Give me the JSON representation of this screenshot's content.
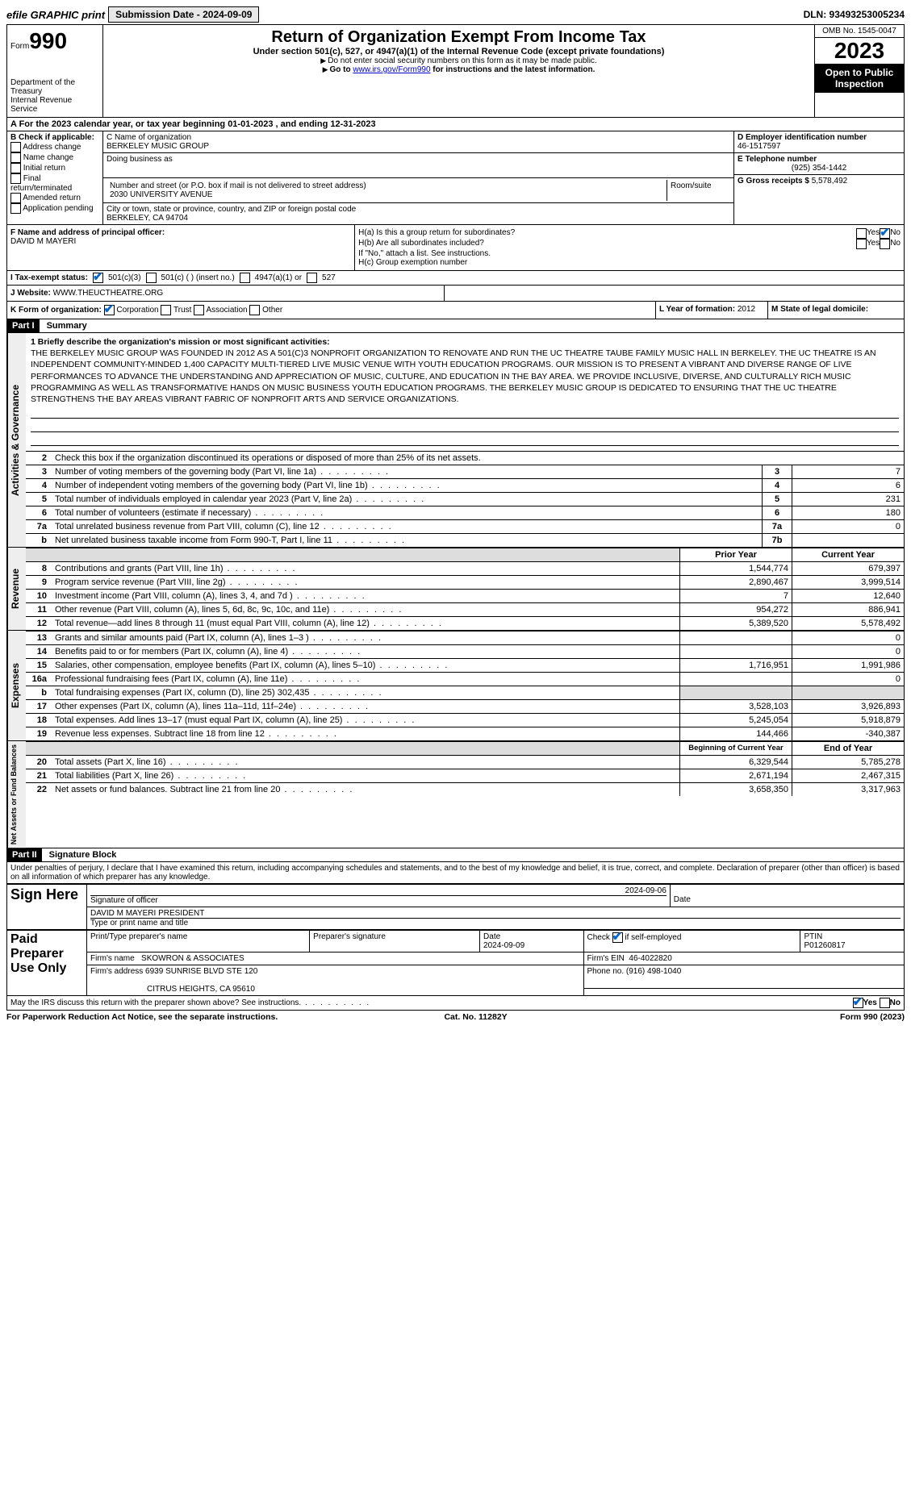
{
  "topbar": {
    "efile_label": "efile GRAPHIC print",
    "submission_label": "Submission Date - 2024-09-09",
    "dln_label": "DLN: 93493253005234"
  },
  "header": {
    "form_word": "Form",
    "form_num": "990",
    "dept": "Department of the Treasury",
    "irs": "Internal Revenue Service",
    "title": "Return of Organization Exempt From Income Tax",
    "subtitle": "Under section 501(c), 527, or 4947(a)(1) of the Internal Revenue Code (except private foundations)",
    "warn": "Do not enter social security numbers on this form as it may be made public.",
    "goto_pre": "Go to ",
    "goto_link": "www.irs.gov/Form990",
    "goto_post": " for instructions and the latest information.",
    "omb": "OMB No. 1545-0047",
    "year": "2023",
    "inspect": "Open to Public Inspection"
  },
  "lineA": "A For the 2023 calendar year, or tax year beginning 01-01-2023   , and ending 12-31-2023",
  "colB": {
    "header": "B Check if applicable:",
    "items": [
      "Address change",
      "Name change",
      "Initial return",
      "Final return/terminated",
      "Amended return",
      "Application pending"
    ]
  },
  "colC": {
    "name_label": "C Name of organization",
    "name": "BERKELEY MUSIC GROUP",
    "dba_label": "Doing business as",
    "addr_label": "Number and street (or P.O. box if mail is not delivered to street address)",
    "addr": "2030 UNIVERSITY AVENUE",
    "room_label": "Room/suite",
    "city_label": "City or town, state or province, country, and ZIP or foreign postal code",
    "city": "BERKELEY, CA  94704"
  },
  "colD": {
    "ein_label": "D Employer identification number",
    "ein": "46-1517597",
    "phone_label": "E Telephone number",
    "phone": "(925) 354-1442",
    "gross_label": "G Gross receipts $",
    "gross": "5,578,492"
  },
  "rowF": {
    "label": "F Name and address of principal officer:",
    "name": "DAVID M MAYERI"
  },
  "rowH": {
    "ha": "H(a)  Is this a group return for subordinates?",
    "hb": "H(b)  Are all subordinates included?",
    "hnote": "If \"No,\" attach a list. See instructions.",
    "hc": "H(c)  Group exemption number",
    "yes": "Yes",
    "no": "No"
  },
  "rowI": {
    "label": "I   Tax-exempt status:",
    "o1": "501(c)(3)",
    "o2": "501(c) (  ) (insert no.)",
    "o3": "4947(a)(1) or",
    "o4": "527"
  },
  "rowJ": {
    "label": "J   Website:",
    "val": "WWW.THEUCTHEATRE.ORG"
  },
  "rowK": {
    "label": "K Form of organization:",
    "o1": "Corporation",
    "o2": "Trust",
    "o3": "Association",
    "o4": "Other",
    "l_label": "L Year of formation:",
    "l_val": "2012",
    "m_label": "M State of legal domicile:"
  },
  "part1": {
    "hdr": "Part I",
    "title": "Summary",
    "q1_label": "1  Briefly describe the organization's mission or most significant activities:",
    "mission": "THE BERKELEY MUSIC GROUP WAS FOUNDED IN 2012 AS A 501(C)3 NONPROFIT ORGANIZATION TO RENOVATE AND RUN THE UC THEATRE TAUBE FAMILY MUSIC HALL IN BERKELEY. THE UC THEATRE IS AN INDEPENDENT COMMUNITY-MINDED 1,400 CAPACITY MULTI-TIERED LIVE MUSIC VENUE WITH YOUTH EDUCATION PROGRAMS. OUR MISSION IS TO PRESENT A VIBRANT AND DIVERSE RANGE OF LIVE PERFORMANCES TO ADVANCE THE UNDERSTANDING AND APPRECIATION OF MUSIC, CULTURE, AND EDUCATION IN THE BAY AREA. WE PROVIDE INCLUSIVE, DIVERSE, AND CULTURALLY RICH MUSIC PROGRAMMING AS WELL AS TRANSFORMATIVE HANDS ON MUSIC BUSINESS YOUTH EDUCATION PROGRAMS. THE BERKELEY MUSIC GROUP IS DEDICATED TO ENSURING THAT THE UC THEATRE STRENGTHENS THE BAY AREAS VIBRANT FABRIC OF NONPROFIT ARTS AND SERVICE ORGANIZATIONS.",
    "q2": "Check this box       if the organization discontinued its operations or disposed of more than 25% of its net assets.",
    "rows_single": [
      {
        "n": "3",
        "d": "Number of voting members of the governing body (Part VI, line 1a)",
        "box": "3",
        "v": "7"
      },
      {
        "n": "4",
        "d": "Number of independent voting members of the governing body (Part VI, line 1b)",
        "box": "4",
        "v": "6"
      },
      {
        "n": "5",
        "d": "Total number of individuals employed in calendar year 2023 (Part V, line 2a)",
        "box": "5",
        "v": "231"
      },
      {
        "n": "6",
        "d": "Total number of volunteers (estimate if necessary)",
        "box": "6",
        "v": "180"
      },
      {
        "n": "7a",
        "d": "Total unrelated business revenue from Part VIII, column (C), line 12",
        "box": "7a",
        "v": "0"
      },
      {
        "n": "b",
        "d": "Net unrelated business taxable income from Form 990-T, Part I, line 11",
        "box": "7b",
        "v": ""
      }
    ],
    "col_hdr_prior": "Prior Year",
    "col_hdr_curr": "Current Year",
    "revenue_label": "Revenue",
    "rows_rev": [
      {
        "n": "8",
        "d": "Contributions and grants (Part VIII, line 1h)",
        "p": "1,544,774",
        "c": "679,397"
      },
      {
        "n": "9",
        "d": "Program service revenue (Part VIII, line 2g)",
        "p": "2,890,467",
        "c": "3,999,514"
      },
      {
        "n": "10",
        "d": "Investment income (Part VIII, column (A), lines 3, 4, and 7d )",
        "p": "7",
        "c": "12,640"
      },
      {
        "n": "11",
        "d": "Other revenue (Part VIII, column (A), lines 5, 6d, 8c, 9c, 10c, and 11e)",
        "p": "954,272",
        "c": "886,941"
      },
      {
        "n": "12",
        "d": "Total revenue—add lines 8 through 11 (must equal Part VIII, column (A), line 12)",
        "p": "5,389,520",
        "c": "5,578,492"
      }
    ],
    "expenses_label": "Expenses",
    "rows_exp": [
      {
        "n": "13",
        "d": "Grants and similar amounts paid (Part IX, column (A), lines 1–3 )",
        "p": "",
        "c": "0"
      },
      {
        "n": "14",
        "d": "Benefits paid to or for members (Part IX, column (A), line 4)",
        "p": "",
        "c": "0"
      },
      {
        "n": "15",
        "d": "Salaries, other compensation, employee benefits (Part IX, column (A), lines 5–10)",
        "p": "1,716,951",
        "c": "1,991,986"
      },
      {
        "n": "16a",
        "d": "Professional fundraising fees (Part IX, column (A), line 11e)",
        "p": "",
        "c": "0"
      },
      {
        "n": "b",
        "d": "Total fundraising expenses (Part IX, column (D), line 25) 302,435",
        "p": "grey",
        "c": "grey"
      },
      {
        "n": "17",
        "d": "Other expenses (Part IX, column (A), lines 11a–11d, 11f–24e)",
        "p": "3,528,103",
        "c": "3,926,893"
      },
      {
        "n": "18",
        "d": "Total expenses. Add lines 13–17 (must equal Part IX, column (A), line 25)",
        "p": "5,245,054",
        "c": "5,918,879"
      },
      {
        "n": "19",
        "d": "Revenue less expenses. Subtract line 18 from line 12",
        "p": "144,466",
        "c": "-340,387"
      }
    ],
    "net_label": "Net Assets or Fund Balances",
    "col_hdr_beg": "Beginning of Current Year",
    "col_hdr_end": "End of Year",
    "rows_net": [
      {
        "n": "20",
        "d": "Total assets (Part X, line 16)",
        "p": "6,329,544",
        "c": "5,785,278"
      },
      {
        "n": "21",
        "d": "Total liabilities (Part X, line 26)",
        "p": "2,671,194",
        "c": "2,467,315"
      },
      {
        "n": "22",
        "d": "Net assets or fund balances. Subtract line 21 from line 20",
        "p": "3,658,350",
        "c": "3,317,963"
      }
    ],
    "gov_label": "Activities & Governance"
  },
  "part2": {
    "hdr": "Part II",
    "title": "Signature Block",
    "perjury": "Under penalties of perjury, I declare that I have examined this return, including accompanying schedules and statements, and to the best of my knowledge and belief, it is true, correct, and complete. Declaration of preparer (other than officer) is based on all information of which preparer has any knowledge.",
    "sign_here": "Sign Here",
    "sig_date": "2024-09-06",
    "sig_officer_label": "Signature of officer",
    "officer": "DAVID M MAYERI PRESIDENT",
    "officer_label": "Type or print name and title",
    "date_label": "Date",
    "paid": "Paid Preparer Use Only",
    "prep_name_label": "Print/Type preparer's name",
    "prep_sig_label": "Preparer's signature",
    "prep_date": "2024-09-09",
    "check_self": "Check       if self-employed",
    "ptin_label": "PTIN",
    "ptin": "P01260817",
    "firm_name_label": "Firm's name",
    "firm_name": "SKOWRON & ASSOCIATES",
    "firm_ein_label": "Firm's EIN",
    "firm_ein": "46-4022820",
    "firm_addr_label": "Firm's address",
    "firm_addr1": "6939 SUNRISE BLVD STE 120",
    "firm_addr2": "CITRUS HEIGHTS, CA  95610",
    "firm_phone_label": "Phone no.",
    "firm_phone": "(916) 498-1040",
    "discuss": "May the IRS discuss this return with the preparer shown above? See instructions.",
    "yes": "Yes",
    "no": "No"
  },
  "footer": {
    "left": "For Paperwork Reduction Act Notice, see the separate instructions.",
    "mid": "Cat. No. 11282Y",
    "right": "Form 990 (2023)"
  }
}
